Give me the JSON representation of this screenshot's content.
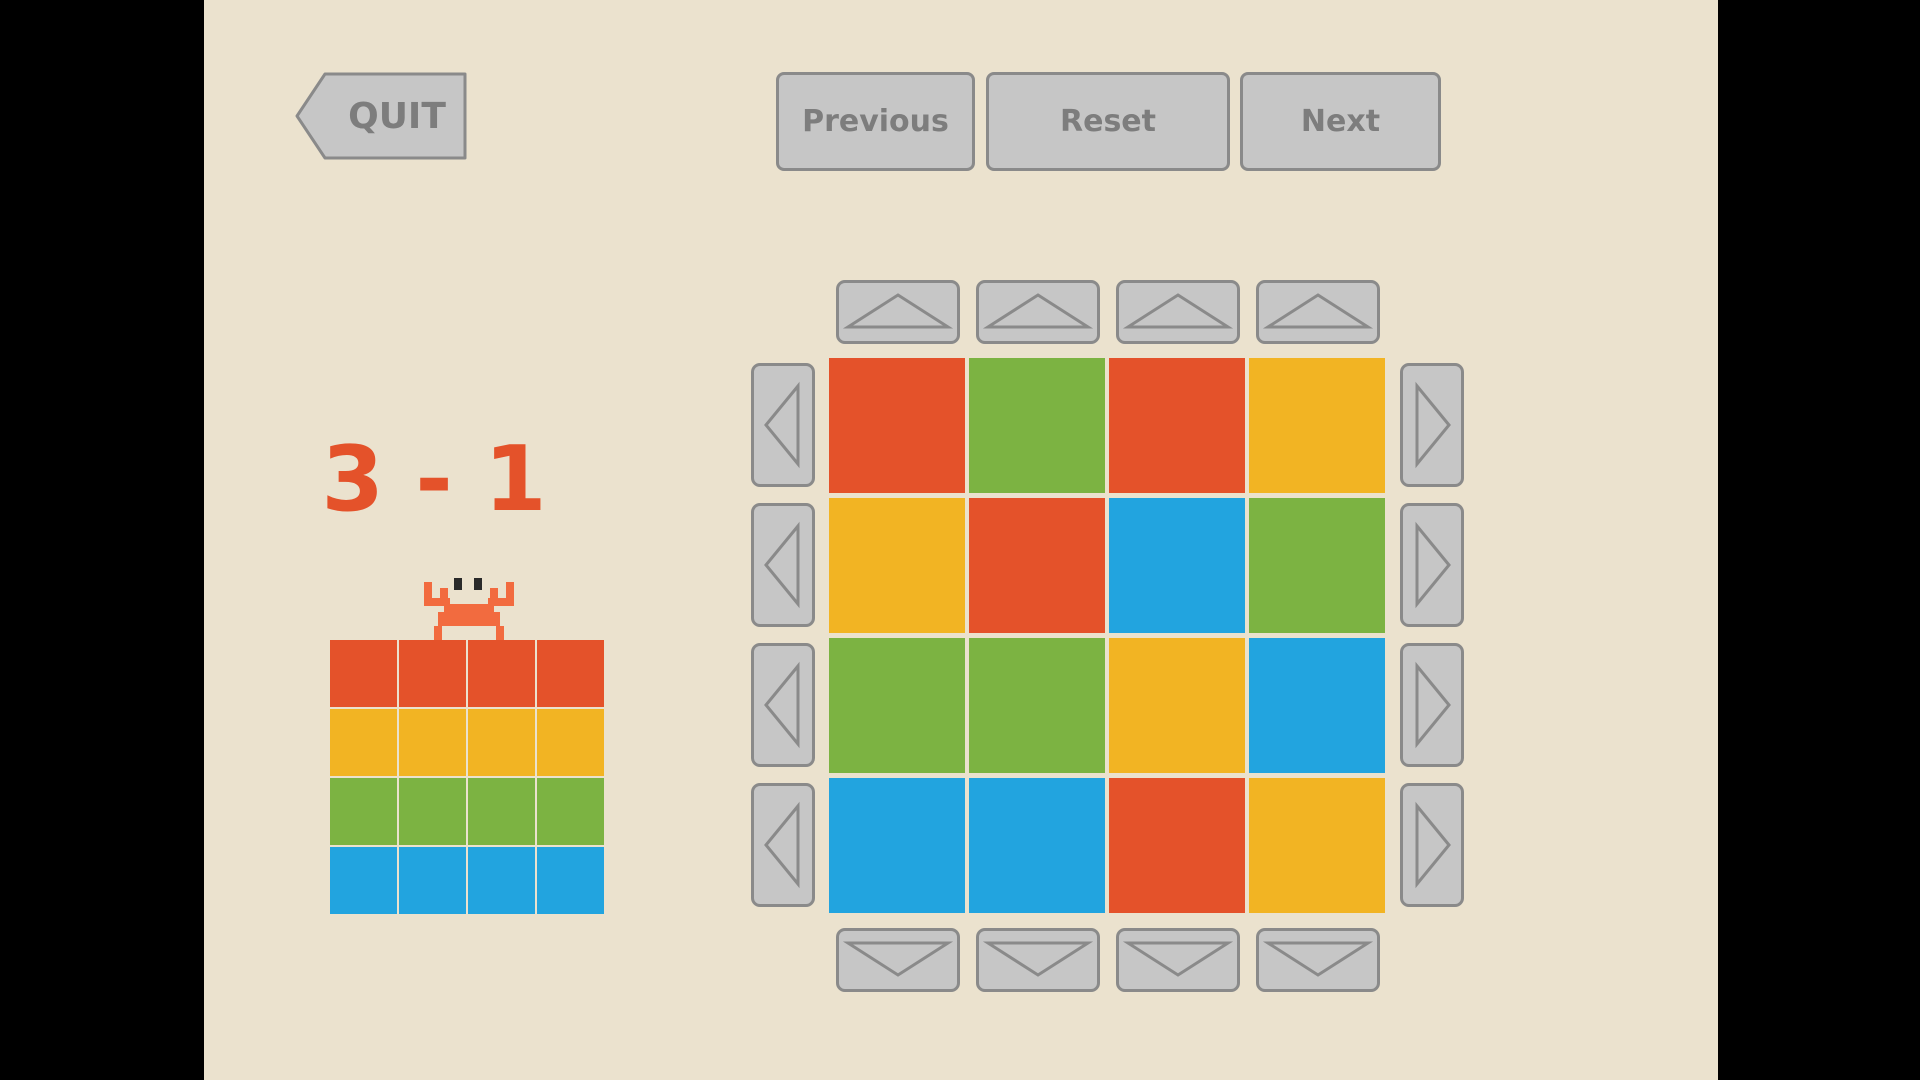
{
  "controls": {
    "quit_label": "QUIT",
    "previous_label": "Previous",
    "reset_label": "Reset",
    "next_label": "Next"
  },
  "level": "3 - 1",
  "colors": {
    "red": "#e4522a",
    "green": "#7cb342",
    "yellow": "#f2b423",
    "blue": "#22a4df",
    "background": "#ebe2ce",
    "button": "#c6c6c6",
    "button_border": "#8a8a8a",
    "crab": "#f26b3f"
  },
  "target_grid": [
    [
      "red",
      "red",
      "red",
      "red"
    ],
    [
      "yellow",
      "yellow",
      "yellow",
      "yellow"
    ],
    [
      "green",
      "green",
      "green",
      "green"
    ],
    [
      "blue",
      "blue",
      "blue",
      "blue"
    ]
  ],
  "board_grid": [
    [
      "red",
      "green",
      "red",
      "yellow"
    ],
    [
      "yellow",
      "red",
      "blue",
      "green"
    ],
    [
      "green",
      "green",
      "yellow",
      "blue"
    ],
    [
      "blue",
      "blue",
      "red",
      "yellow"
    ]
  ],
  "icons": {
    "quit": "back-arrow-tab-icon",
    "shift_up": "triangle-up-icon",
    "shift_down": "triangle-down-icon",
    "shift_left": "triangle-left-icon",
    "shift_right": "triangle-right-icon",
    "mascot": "pixel-crab-icon"
  }
}
